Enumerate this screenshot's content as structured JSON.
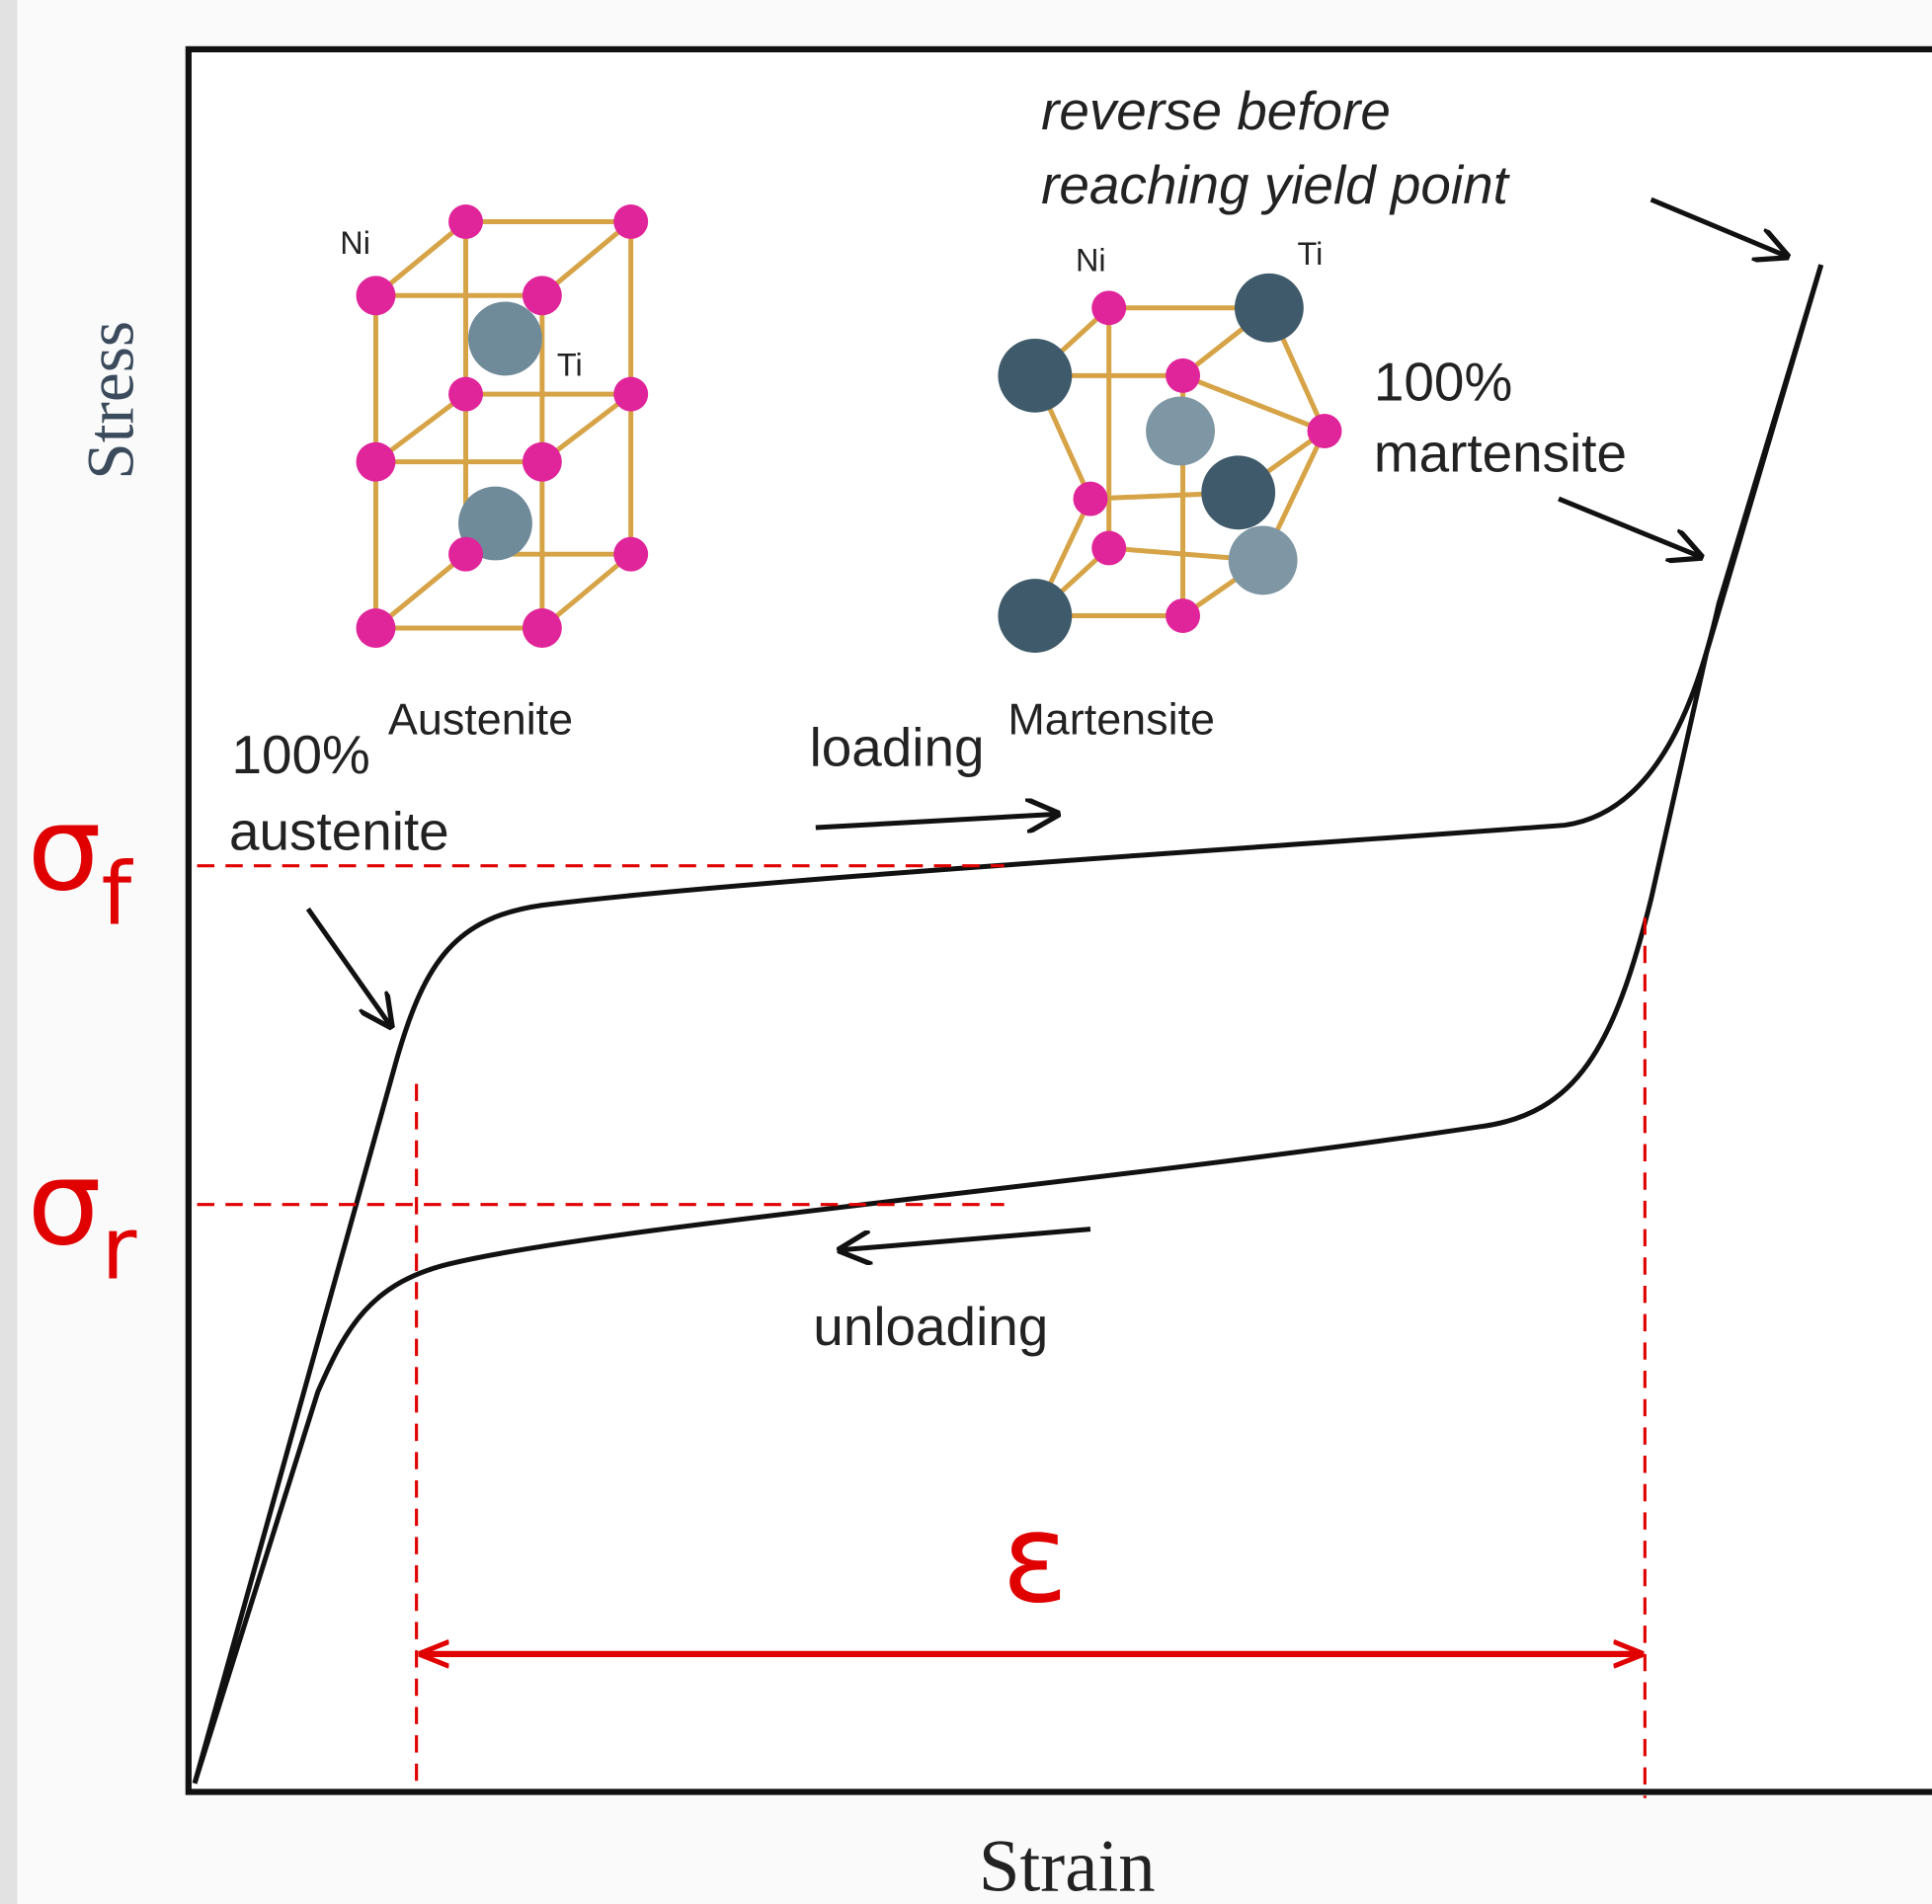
{
  "axes": {
    "y_label": "Stress",
    "x_label": "Strain"
  },
  "annotations": {
    "reverse_line1": "reverse before",
    "reverse_line2": "reaching yield point",
    "martensite_pct": "100%",
    "martensite": "martensite",
    "austenite_pct": "100%",
    "austenite": "austenite",
    "loading": "loading",
    "unloading": "unloading"
  },
  "structures": [
    {
      "name": "Austenite",
      "atom1": "Ni",
      "atom2": "Ti"
    },
    {
      "name": "Martensite",
      "atom1": "Ni",
      "atom2": "Ti"
    }
  ],
  "symbols": {
    "sigma_f": {
      "base": "σ",
      "sub": "f"
    },
    "sigma_r": {
      "base": "σ",
      "sub": "r"
    },
    "strain": "ε"
  }
}
